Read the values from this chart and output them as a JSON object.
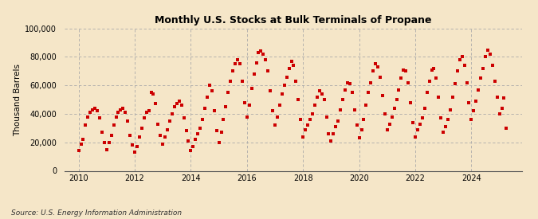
{
  "title": "Monthly U.S. Stocks at Bulk Terminals of Propane",
  "ylabel": "Thousand Barrels",
  "source": "Source: U.S. Energy Information Administration",
  "background_color": "#f5e6c8",
  "plot_bg_color": "#f5e6c8",
  "marker_color": "#cc0000",
  "marker_size": 5,
  "xlim": [
    2009.5,
    2025.8
  ],
  "ylim": [
    0,
    100000
  ],
  "yticks": [
    0,
    20000,
    40000,
    60000,
    80000,
    100000
  ],
  "ytick_labels": [
    "0",
    "20,000",
    "40,000",
    "60,000",
    "80,000",
    "100,000"
  ],
  "xticks": [
    2010,
    2012,
    2014,
    2016,
    2018,
    2020,
    2022,
    2024
  ],
  "data": {
    "2010-01": 14000,
    "2010-02": 19000,
    "2010-03": 22000,
    "2010-04": 32000,
    "2010-05": 38000,
    "2010-06": 41000,
    "2010-07": 43000,
    "2010-08": 44000,
    "2010-09": 42000,
    "2010-10": 37000,
    "2010-11": 27000,
    "2010-12": 20000,
    "2011-01": 15000,
    "2011-02": 20000,
    "2011-03": 25000,
    "2011-04": 32000,
    "2011-05": 38000,
    "2011-06": 41000,
    "2011-07": 43000,
    "2011-08": 44000,
    "2011-09": 41000,
    "2011-10": 35000,
    "2011-11": 25000,
    "2011-12": 18000,
    "2012-01": 13000,
    "2012-02": 17000,
    "2012-03": 24000,
    "2012-04": 30000,
    "2012-05": 37000,
    "2012-06": 41000,
    "2012-07": 42000,
    "2012-08": 55000,
    "2012-09": 54000,
    "2012-10": 47000,
    "2012-11": 33000,
    "2012-12": 25000,
    "2013-01": 19000,
    "2013-02": 24000,
    "2013-03": 29000,
    "2013-04": 35000,
    "2013-05": 40000,
    "2013-06": 45000,
    "2013-07": 47000,
    "2013-08": 49000,
    "2013-09": 46000,
    "2013-10": 37000,
    "2013-11": 28000,
    "2013-12": 21000,
    "2014-01": 14000,
    "2014-02": 17000,
    "2014-03": 22000,
    "2014-04": 26000,
    "2014-05": 30000,
    "2014-06": 36000,
    "2014-07": 44000,
    "2014-08": 52000,
    "2014-09": 60000,
    "2014-10": 56000,
    "2014-11": 42000,
    "2014-12": 28000,
    "2015-01": 20000,
    "2015-02": 27000,
    "2015-03": 36000,
    "2015-04": 45000,
    "2015-05": 55000,
    "2015-06": 63000,
    "2015-07": 70000,
    "2015-08": 75000,
    "2015-09": 78000,
    "2015-10": 75000,
    "2015-11": 63000,
    "2015-12": 48000,
    "2016-01": 38000,
    "2016-02": 46000,
    "2016-03": 58000,
    "2016-04": 68000,
    "2016-05": 76000,
    "2016-06": 83000,
    "2016-07": 84000,
    "2016-08": 82000,
    "2016-09": 78000,
    "2016-10": 70000,
    "2016-11": 56000,
    "2016-12": 42000,
    "2017-01": 32000,
    "2017-02": 38000,
    "2017-03": 46000,
    "2017-04": 54000,
    "2017-05": 60000,
    "2017-06": 66000,
    "2017-07": 72000,
    "2017-08": 77000,
    "2017-09": 74000,
    "2017-10": 63000,
    "2017-11": 50000,
    "2017-12": 36000,
    "2018-01": 24000,
    "2018-02": 29000,
    "2018-03": 32000,
    "2018-04": 36000,
    "2018-05": 40000,
    "2018-06": 46000,
    "2018-07": 52000,
    "2018-08": 56000,
    "2018-09": 54000,
    "2018-10": 50000,
    "2018-11": 38000,
    "2018-12": 26000,
    "2019-01": 21000,
    "2019-02": 26000,
    "2019-03": 31000,
    "2019-04": 35000,
    "2019-05": 43000,
    "2019-06": 50000,
    "2019-07": 57000,
    "2019-08": 62000,
    "2019-09": 61000,
    "2019-10": 55000,
    "2019-11": 43000,
    "2019-12": 32000,
    "2020-01": 23000,
    "2020-02": 29000,
    "2020-03": 36000,
    "2020-04": 46000,
    "2020-05": 55000,
    "2020-06": 62000,
    "2020-07": 70000,
    "2020-08": 75000,
    "2020-09": 73000,
    "2020-10": 66000,
    "2020-11": 53000,
    "2020-12": 40000,
    "2021-01": 29000,
    "2021-02": 33000,
    "2021-03": 38000,
    "2021-04": 44000,
    "2021-05": 50000,
    "2021-06": 57000,
    "2021-07": 65000,
    "2021-08": 71000,
    "2021-09": 70000,
    "2021-10": 62000,
    "2021-11": 48000,
    "2021-12": 34000,
    "2022-01": 24000,
    "2022-02": 29000,
    "2022-03": 33000,
    "2022-04": 37000,
    "2022-05": 44000,
    "2022-06": 55000,
    "2022-07": 63000,
    "2022-08": 71000,
    "2022-09": 72000,
    "2022-10": 65000,
    "2022-11": 52000,
    "2022-12": 37000,
    "2023-01": 27000,
    "2023-02": 31000,
    "2023-03": 36000,
    "2023-04": 43000,
    "2023-05": 52000,
    "2023-06": 61000,
    "2023-07": 70000,
    "2023-08": 78000,
    "2023-09": 80000,
    "2023-10": 74000,
    "2023-11": 62000,
    "2023-12": 48000,
    "2024-01": 36000,
    "2024-02": 42000,
    "2024-03": 49000,
    "2024-04": 57000,
    "2024-05": 65000,
    "2024-06": 72000,
    "2024-07": 80000,
    "2024-08": 85000,
    "2024-09": 82000,
    "2024-10": 74000,
    "2024-11": 63000,
    "2024-12": 52000,
    "2025-01": 40000,
    "2025-02": 44000,
    "2025-03": 51000,
    "2025-04": 30000
  }
}
